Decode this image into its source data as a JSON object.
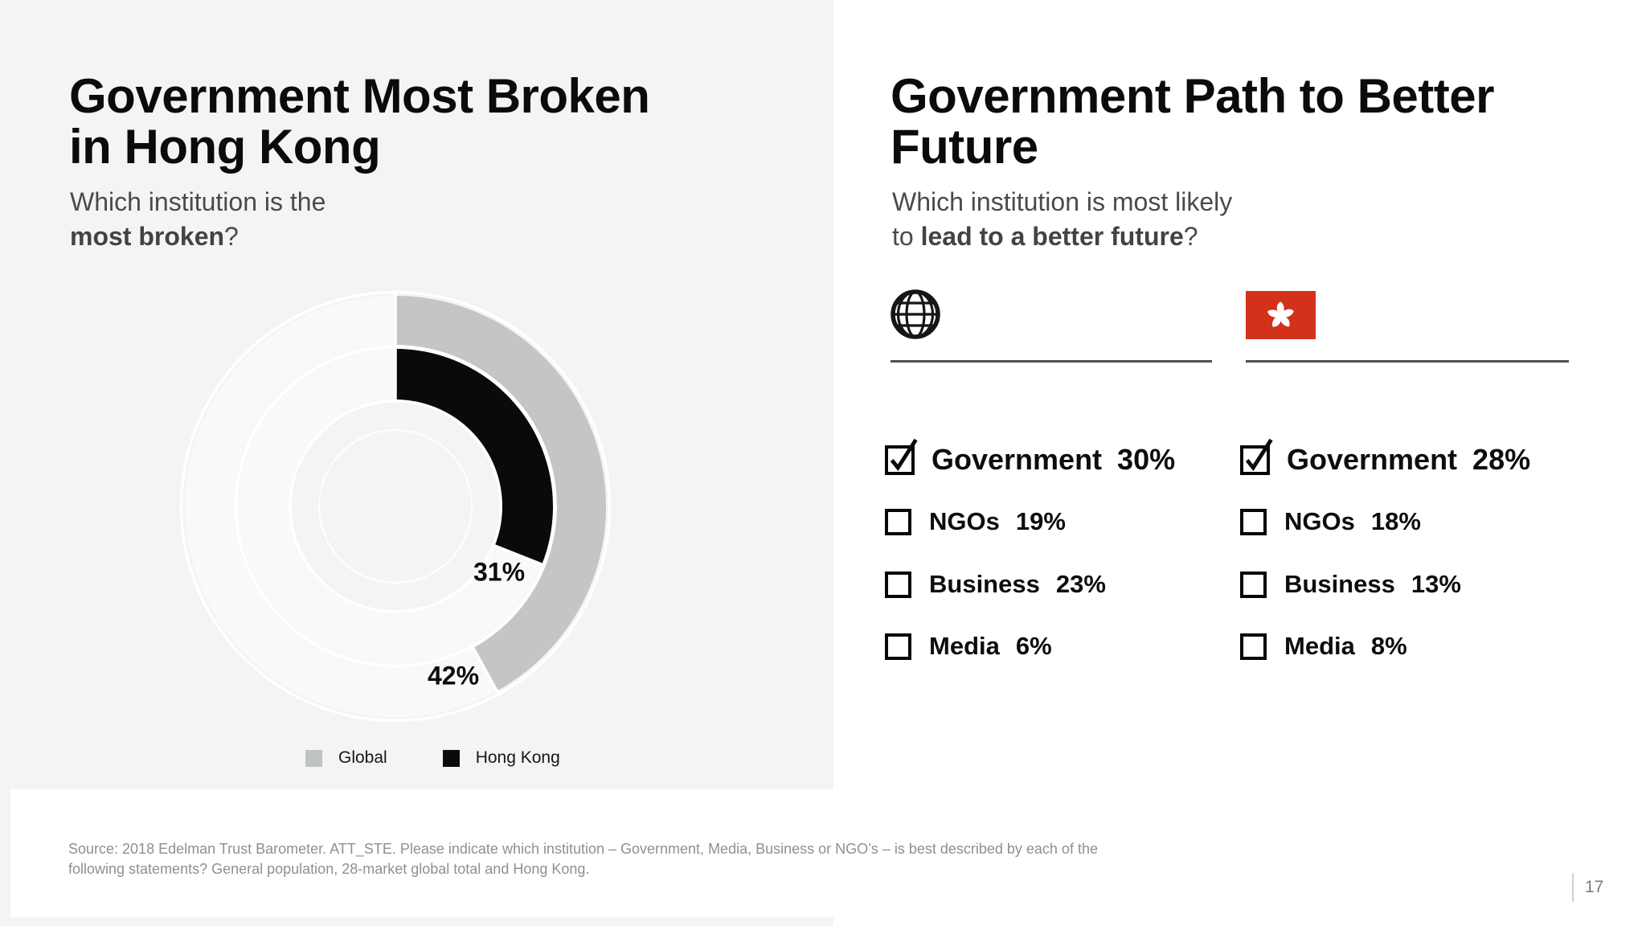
{
  "left_panel": {
    "title": [
      "Government Most Broken",
      "in Hong Kong"
    ],
    "subtitle": {
      "prefix": "Which institution is the",
      "bold": "most broken",
      "suffix": "?"
    }
  },
  "chart_data": {
    "type": "donut",
    "title": "Which institution is the most broken?",
    "rings": [
      {
        "name": "Global",
        "value": 42,
        "label": "42%",
        "color": "#c5c5c5",
        "position": "outer"
      },
      {
        "name": "Hong Kong",
        "value": 31,
        "label": "31%",
        "color": "#0a0a0a",
        "position": "inner"
      }
    ],
    "start_angle": "12 o'clock, clockwise",
    "legend": [
      {
        "label": "Global",
        "color": "#bec2c1"
      },
      {
        "label": "Hong Kong",
        "color": "#0a0a0a"
      }
    ]
  },
  "right_panel": {
    "title": [
      "Government Path to Better",
      "Future"
    ],
    "subtitle": {
      "line1": "Which institution is most likely",
      "line2_prefix": "to ",
      "line2_bold": "lead to a better future",
      "line2_suffix": "?"
    },
    "columns": [
      {
        "icon": "globe-icon",
        "items": [
          {
            "label": "Government",
            "value": "30%",
            "checked": true
          },
          {
            "label": "NGOs",
            "value": "19%",
            "checked": false
          },
          {
            "label": "Business",
            "value": "23%",
            "checked": false
          },
          {
            "label": "Media",
            "value": "6%",
            "checked": false
          }
        ]
      },
      {
        "icon": "hong-kong-flag-icon",
        "flag_color": "#d33119",
        "items": [
          {
            "label": "Government",
            "value": "28%",
            "checked": true
          },
          {
            "label": "NGOs",
            "value": "18%",
            "checked": false
          },
          {
            "label": "Business",
            "value": "13%",
            "checked": false
          },
          {
            "label": "Media",
            "value": "8%",
            "checked": false
          }
        ]
      }
    ]
  },
  "footer": {
    "source_line1": "Source: 2018 Edelman Trust Barometer. ATT_STE. Please indicate which institution – Government, Media, Business or NGO’s – is best described by each of the",
    "source_line2": "following statements? General population, 28-market global total and Hong Kong.",
    "page_number": "17"
  }
}
